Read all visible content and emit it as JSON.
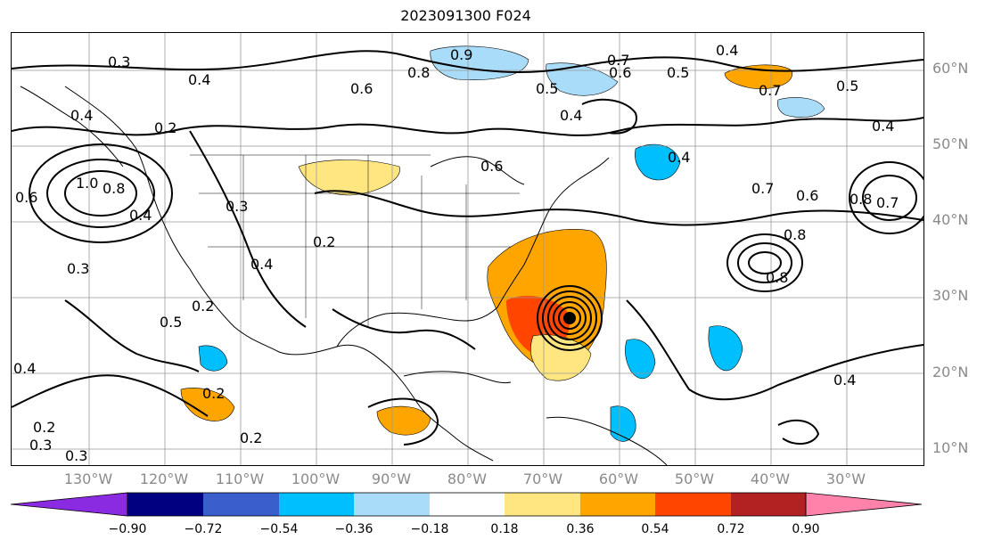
{
  "title": "2023091300 F024",
  "lat_labels": [
    "60°N",
    "50°N",
    "40°N",
    "30°N",
    "20°N",
    "10°N"
  ],
  "lon_labels": [
    "130°W",
    "120°W",
    "110°W",
    "100°W",
    "90°W",
    "80°W",
    "70°W",
    "60°W",
    "50°W",
    "40°W",
    "30°W"
  ],
  "colorbar": {
    "ticks": [
      "−0.90",
      "−0.72",
      "−0.54",
      "−0.36",
      "−0.18",
      "0.18",
      "0.36",
      "0.54",
      "0.72",
      "0.90"
    ],
    "colors": [
      "#8a2be2",
      "#000080",
      "#3a5fcd",
      "#00bfff",
      "#a8dcf8",
      "#ffffff",
      "#ffe680",
      "#ffa500",
      "#ff4500",
      "#b22222",
      "#ff82ab"
    ]
  },
  "contour_labels": [
    "0.3",
    "0.4",
    "0.2",
    "0.4",
    "0.8",
    "0.6",
    "0.9",
    "0.7",
    "0.6",
    "0.5",
    "0.4",
    "0.5",
    "0.4",
    "0.7",
    "0.5",
    "0.4",
    "1.0",
    "0.8",
    "0.6",
    "0.4",
    "0.3",
    "0.3",
    "0.2",
    "0.6",
    "0.4",
    "0.7",
    "0.6",
    "0.8",
    "0.7",
    "0.5",
    "0.2",
    "0.4",
    "0.2",
    "0.2",
    "0.3",
    "0.4",
    "0.2",
    "0.3",
    "0.4",
    "0.8",
    "0.8"
  ]
}
